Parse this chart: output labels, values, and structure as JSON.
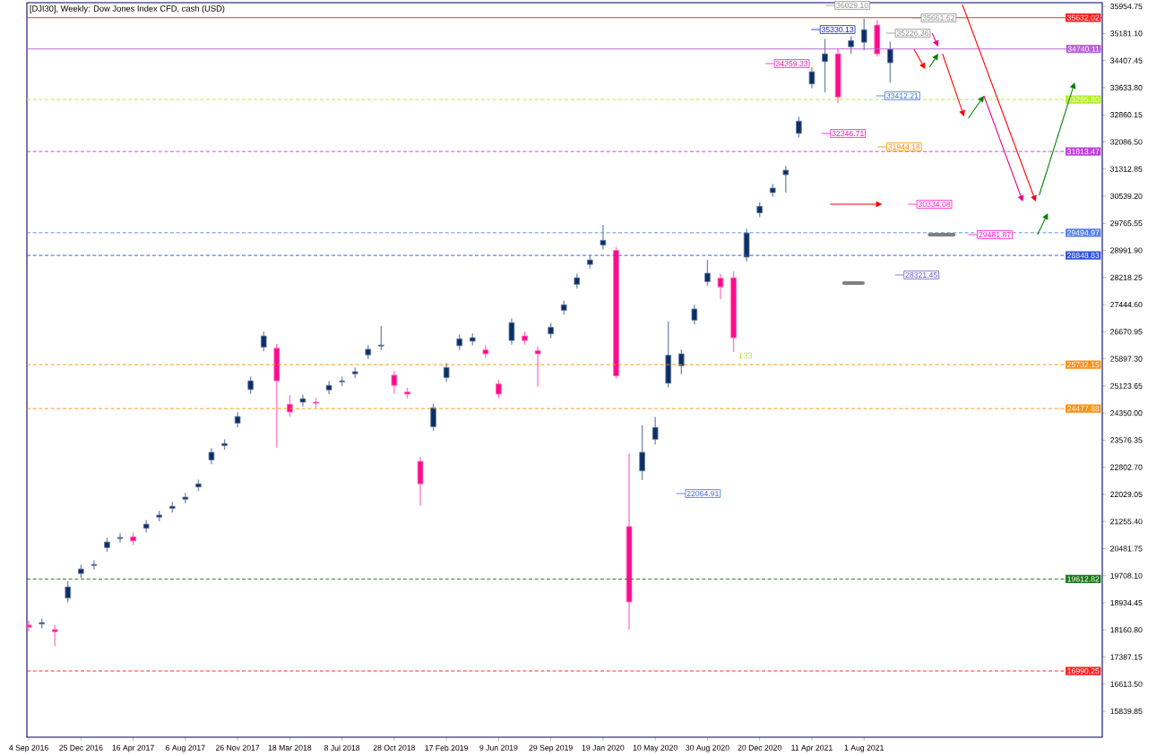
{
  "chart_data": {
    "type": "candlestick",
    "title": "[DJI30], Weekly:  Dow Jones Index CFD, cash (USD)",
    "x": [
      "2016-09-04",
      "2016-10-02",
      "2016-10-30",
      "2016-11-27",
      "2016-12-25",
      "2017-01-22",
      "2017-02-19",
      "2017-03-19",
      "2017-04-16",
      "2017-05-14",
      "2017-06-11",
      "2017-07-09",
      "2017-08-06",
      "2017-09-03",
      "2017-10-01",
      "2017-10-29",
      "2017-11-26",
      "2017-12-24",
      "2018-01-21",
      "2018-02-18",
      "2018-03-18",
      "2018-04-15",
      "2018-05-13",
      "2018-06-10",
      "2018-07-08",
      "2018-08-05",
      "2018-09-02",
      "2018-09-30",
      "2018-10-28",
      "2018-11-25",
      "2018-12-23",
      "2019-01-20",
      "2019-02-17",
      "2019-03-17",
      "2019-04-14",
      "2019-05-12",
      "2019-06-09",
      "2019-07-07",
      "2019-08-04",
      "2019-09-01",
      "2019-09-29",
      "2019-10-27",
      "2019-11-24",
      "2019-12-22",
      "2020-01-19",
      "2020-02-16",
      "2020-03-15",
      "2020-04-12",
      "2020-05-10",
      "2020-06-07",
      "2020-07-05",
      "2020-08-02",
      "2020-08-30",
      "2020-09-27",
      "2020-10-25",
      "2020-11-22",
      "2020-12-20",
      "2021-01-17",
      "2021-02-14",
      "2021-03-14",
      "2021-04-11",
      "2021-05-09",
      "2021-06-06",
      "2021-07-04",
      "2021-08-01",
      "2021-08-29",
      "2021-09-26"
    ],
    "ohlc": [
      [
        18300,
        18420,
        18120,
        18240
      ],
      [
        18330,
        18490,
        18210,
        18370
      ],
      [
        18170,
        18300,
        17700,
        18110
      ],
      [
        19070,
        19560,
        18950,
        19390
      ],
      [
        19770,
        20020,
        19650,
        19900
      ],
      [
        20000,
        20150,
        19880,
        20030
      ],
      [
        20510,
        20790,
        20390,
        20670
      ],
      [
        20770,
        20920,
        20650,
        20800
      ],
      [
        20820,
        20940,
        20580,
        20700
      ],
      [
        21060,
        21300,
        20940,
        21180
      ],
      [
        21380,
        21560,
        21260,
        21440
      ],
      [
        21630,
        21810,
        21510,
        21690
      ],
      [
        21890,
        22070,
        21770,
        21950
      ],
      [
        22240,
        22450,
        22120,
        22330
      ],
      [
        23010,
        23350,
        22890,
        23230
      ],
      [
        23420,
        23600,
        23300,
        23480
      ],
      [
        24060,
        24370,
        23940,
        24250
      ],
      [
        25020,
        25390,
        24900,
        25270
      ],
      [
        26230,
        26670,
        26110,
        26550
      ],
      [
        26200,
        26320,
        23360,
        25270
      ],
      [
        24600,
        24860,
        24250,
        24380
      ],
      [
        24660,
        24880,
        24540,
        24760
      ],
      [
        24660,
        24780,
        24510,
        24630
      ],
      [
        25010,
        25260,
        24890,
        25140
      ],
      [
        25240,
        25390,
        25120,
        25270
      ],
      [
        25470,
        25650,
        25350,
        25530
      ],
      [
        26010,
        26290,
        25890,
        26170
      ],
      [
        26260,
        26830,
        26140,
        26290
      ],
      [
        25430,
        25550,
        24900,
        25140
      ],
      [
        24950,
        25070,
        24770,
        24890
      ],
      [
        22970,
        23100,
        21710,
        22330
      ],
      [
        23960,
        24620,
        23840,
        24500
      ],
      [
        25360,
        25770,
        25240,
        25650
      ],
      [
        26270,
        26590,
        26150,
        26470
      ],
      [
        26400,
        26620,
        26280,
        26500
      ],
      [
        26150,
        26280,
        25920,
        26040
      ],
      [
        25180,
        25300,
        24770,
        24890
      ],
      [
        26420,
        27050,
        26300,
        26930
      ],
      [
        26550,
        26670,
        26300,
        26420
      ],
      [
        26130,
        26250,
        25100,
        26040
      ],
      [
        26610,
        26920,
        26490,
        26800
      ],
      [
        27280,
        27560,
        27160,
        27440
      ],
      [
        28020,
        28330,
        27900,
        28210
      ],
      [
        28590,
        28840,
        28470,
        28720
      ],
      [
        29140,
        29720,
        29020,
        29280
      ],
      [
        28990,
        29090,
        25330,
        25410
      ],
      [
        21110,
        23190,
        18170,
        18960
      ],
      [
        22700,
        24000,
        22440,
        23230
      ],
      [
        23600,
        24240,
        23450,
        23940
      ],
      [
        25200,
        26960,
        25080,
        26000
      ],
      [
        25700,
        26160,
        25460,
        26040
      ],
      [
        27000,
        27440,
        26880,
        27320
      ],
      [
        28100,
        28720,
        27980,
        28340
      ],
      [
        28200,
        28320,
        27600,
        27950
      ],
      [
        28210,
        28400,
        26090,
        26500
      ],
      [
        28800,
        29610,
        28680,
        29490
      ],
      [
        30060,
        30370,
        29940,
        30250
      ],
      [
        30640,
        30890,
        30520,
        30770
      ],
      [
        31150,
        31400,
        30640,
        31280
      ],
      [
        32330,
        32800,
        32210,
        32680
      ],
      [
        33740,
        34210,
        33620,
        34090
      ],
      [
        34380,
        35030,
        33500,
        34600
      ],
      [
        34600,
        34760,
        33190,
        33370
      ],
      [
        34800,
        35100,
        34600,
        34980
      ],
      [
        34930,
        35600,
        34700,
        35290
      ],
      [
        35420,
        35560,
        34520,
        34600
      ],
      [
        34345,
        34950,
        33780,
        34730
      ]
    ],
    "colors": [
      "#ff0a8c",
      "#0b2f66",
      "#ff0a8c",
      "#0b2f66",
      "#0b2f66",
      "#0b2f66",
      "#0b2f66",
      "#0b2f66",
      "#ff0a8c",
      "#0b2f66",
      "#0b2f66",
      "#0b2f66",
      "#0b2f66",
      "#0b2f66",
      "#0b2f66",
      "#0b2f66",
      "#0b2f66",
      "#0b2f66",
      "#0b2f66",
      "#ff0a8c",
      "#ff0a8c",
      "#0b2f66",
      "#ff0a8c",
      "#0b2f66",
      "#0b2f66",
      "#0b2f66",
      "#0b2f66",
      "#0b2f66",
      "#ff0a8c",
      "#ff0a8c",
      "#ff0a8c",
      "#0b2f66",
      "#0b2f66",
      "#0b2f66",
      "#0b2f66",
      "#ff0a8c",
      "#ff0a8c",
      "#0b2f66",
      "#ff0a8c",
      "#ff0a8c",
      "#0b2f66",
      "#0b2f66",
      "#0b2f66",
      "#0b2f66",
      "#0b2f66",
      "#ff0a8c",
      "#ff0a8c",
      "#0b2f66",
      "#0b2f66",
      "#0b2f66",
      "#0b2f66",
      "#0b2f66",
      "#0b2f66",
      "#ff0a8c",
      "#ff0a8c",
      "#0b2f66",
      "#0b2f66",
      "#0b2f66",
      "#0b2f66",
      "#0b2f66",
      "#0b2f66",
      "#0b2f66",
      "#ff0a8c",
      "#0b2f66",
      "#0b2f66",
      "#ff0a8c",
      "#0b2f66"
    ],
    "xlim": [
      "2016-08-31",
      "2022-12-25"
    ],
    "xticks": [
      {
        "value": "2016-09-04",
        "label": "4 Sep 2016"
      },
      {
        "value": "2016-12-25",
        "label": "25 Dec 2016"
      },
      {
        "value": "2017-04-16",
        "label": "16 Apr 2017"
      },
      {
        "value": "2017-08-06",
        "label": "6 Aug 2017"
      },
      {
        "value": "2017-11-26",
        "label": "26 Nov 2017"
      },
      {
        "value": "2018-03-18",
        "label": "18 Mar 2018"
      },
      {
        "value": "2018-07-08",
        "label": "8 Jul 2018"
      },
      {
        "value": "2018-10-28",
        "label": "28 Oct 2018"
      },
      {
        "value": "2019-02-17",
        "label": "17 Feb 2019"
      },
      {
        "value": "2019-06-09",
        "label": "9 Jun 2019"
      },
      {
        "value": "2019-09-29",
        "label": "29 Sep 2019"
      },
      {
        "value": "2020-01-19",
        "label": "19 Jan 2020"
      },
      {
        "value": "2020-05-10",
        "label": "10 May 2020"
      },
      {
        "value": "2020-08-30",
        "label": "30 Aug 2020"
      },
      {
        "value": "2020-12-20",
        "label": "20 Dec 2020"
      },
      {
        "value": "2021-04-11",
        "label": "11 Apr 2021"
      },
      {
        "value": "2021-08-01",
        "label": "1 Aug 2021"
      }
    ],
    "ylim": [
      15100,
      36060
    ],
    "yticks": [
      {
        "value": 15839.85,
        "label": "15839.85"
      },
      {
        "value": 16613.5,
        "label": "16613.50"
      },
      {
        "value": 17387.15,
        "label": "17387.15"
      },
      {
        "value": 18160.8,
        "label": "18160.80"
      },
      {
        "value": 18934.45,
        "label": "18934.45"
      },
      {
        "value": 19708.1,
        "label": "19708.10"
      },
      {
        "value": 20481.75,
        "label": "20481.75"
      },
      {
        "value": 21255.4,
        "label": "21255.40"
      },
      {
        "value": 22029.05,
        "label": "22029.05"
      },
      {
        "value": 22802.7,
        "label": "22802.70"
      },
      {
        "value": 23576.35,
        "label": "23576.35"
      },
      {
        "value": 24350,
        "label": "24350.00"
      },
      {
        "value": 25123.65,
        "label": "25123.65"
      },
      {
        "value": 25897.3,
        "label": "25897.30"
      },
      {
        "value": 26670.95,
        "label": "26670.95"
      },
      {
        "value": 27444.6,
        "label": "27444.60"
      },
      {
        "value": 28218.25,
        "label": "28218.25"
      },
      {
        "value": 28991.9,
        "label": "28991.90"
      },
      {
        "value": 29765.55,
        "label": "29765.55"
      },
      {
        "value": 30539.2,
        "label": "30539.20"
      },
      {
        "value": 31312.85,
        "label": "31312.85"
      },
      {
        "value": 32086.5,
        "label": "32086.50"
      },
      {
        "value": 32860.15,
        "label": "32860.15"
      },
      {
        "value": 33633.8,
        "label": "33633.80"
      },
      {
        "value": 34407.45,
        "label": "34407.45"
      },
      {
        "value": 35181.1,
        "label": "35181.10"
      },
      {
        "value": 35954.75,
        "label": "35954.75"
      }
    ],
    "ref_lines": [
      {
        "axis": "y",
        "value": 35632.02,
        "label": "35632.02",
        "color": "#ff2020",
        "line_style": "solid"
      },
      {
        "axis": "y",
        "value": 34740.11,
        "label": "34740.11",
        "color": "#b864d8",
        "line_style": "solid"
      },
      {
        "axis": "y",
        "value": 33295.8,
        "label": "33295.80",
        "color": "#b2f020",
        "line_style": "dashed"
      },
      {
        "axis": "y",
        "value": 31813.47,
        "label": "31813.47",
        "color": "#c040e0",
        "line_style": "dashed"
      },
      {
        "axis": "y",
        "value": 29494.97,
        "label": "29494.97",
        "color": "#5b82e6",
        "line_style": "dashed"
      },
      {
        "axis": "y",
        "value": 28848.83,
        "label": "28848.83",
        "color": "#2f55e0",
        "line_style": "dashed"
      },
      {
        "axis": "y",
        "value": 25732.15,
        "label": "25732.15",
        "color": "#ff9010",
        "line_style": "dashed"
      },
      {
        "axis": "y",
        "value": 24477.88,
        "label": "24477.88",
        "color": "#ff9010",
        "line_style": "dashed"
      },
      {
        "axis": "y",
        "value": 19612.82,
        "label": "19612.82",
        "color": "#1c7a1c",
        "line_style": "dashed"
      },
      {
        "axis": "y",
        "value": 16990.25,
        "label": "16990.25",
        "color": "#ff2020",
        "line_style": "dashed"
      }
    ],
    "annotations": [
      "36029.10",
      "35661.62",
      "35226.36",
      "35330.13",
      "34359.33",
      "33412.21",
      "32346.71",
      "31944.18",
      "30334.08",
      "29481.87",
      "28321.45",
      "22064.91",
      "133"
    ]
  }
}
